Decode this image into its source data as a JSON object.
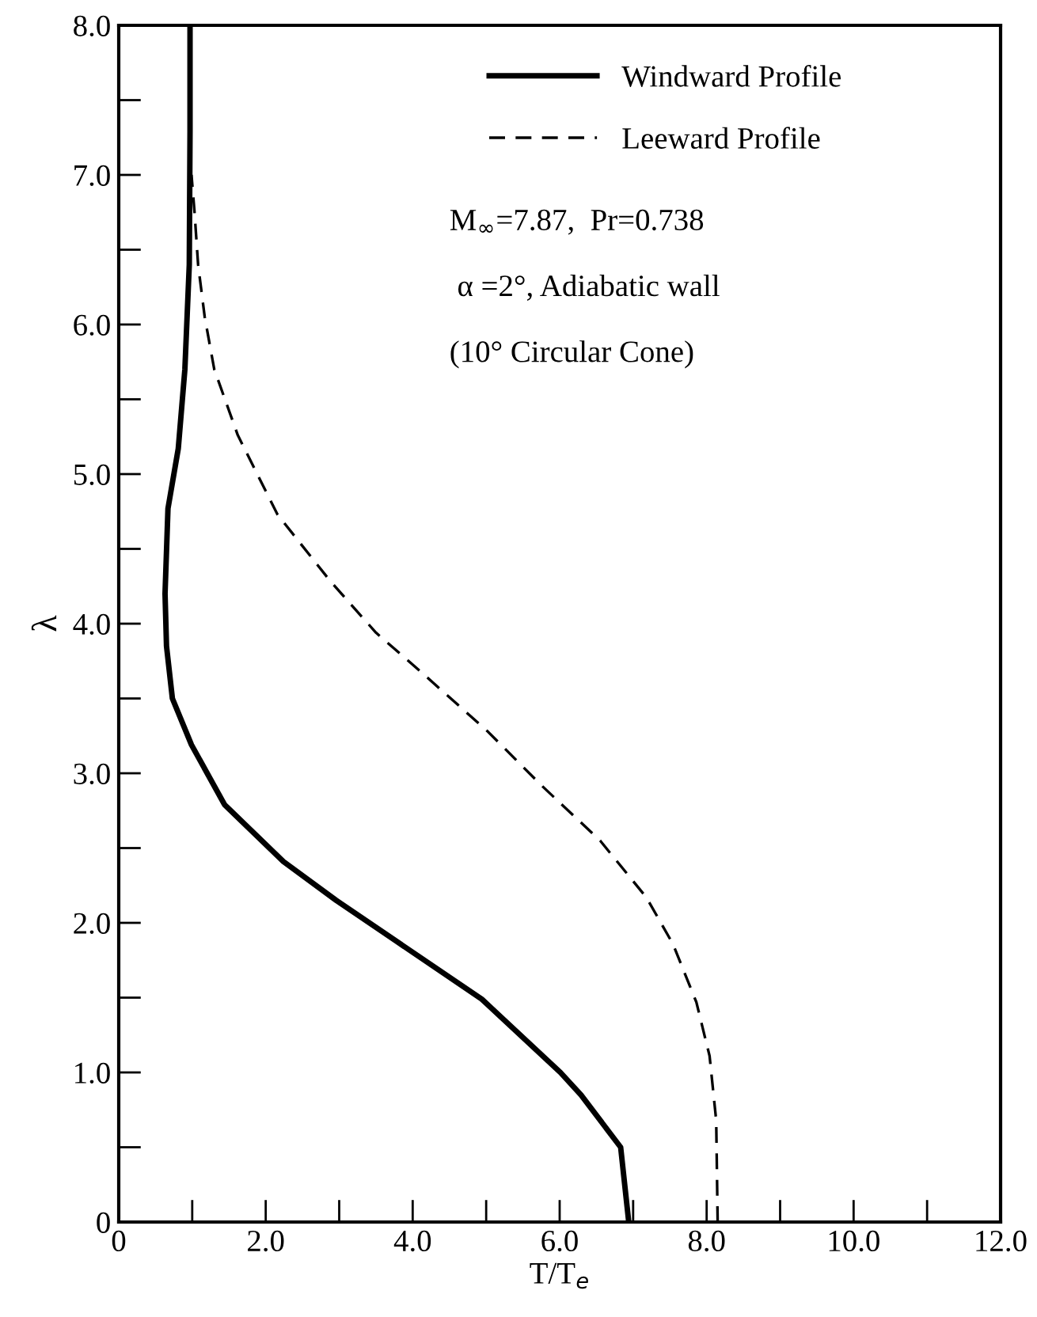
{
  "chart_data": {
    "type": "line",
    "xlabel": "T/T$_{e}$",
    "ylabel": "λ",
    "xlim": [
      0,
      12
    ],
    "ylim": [
      0,
      8
    ],
    "xticks": [
      {
        "value": 0,
        "label": "0"
      },
      {
        "value": 1,
        "label": null
      },
      {
        "value": 2,
        "label": "2.0"
      },
      {
        "value": 3,
        "label": null
      },
      {
        "value": 4,
        "label": "4.0"
      },
      {
        "value": 5,
        "label": null
      },
      {
        "value": 6,
        "label": "6.0"
      },
      {
        "value": 7,
        "label": null
      },
      {
        "value": 8,
        "label": "8.0"
      },
      {
        "value": 9,
        "label": null
      },
      {
        "value": 10,
        "label": "10.0"
      },
      {
        "value": 11,
        "label": null
      },
      {
        "value": 12,
        "label": "12.0"
      }
    ],
    "yticks": [
      {
        "value": 0,
        "label": "0"
      },
      {
        "value": 0.5,
        "label": null
      },
      {
        "value": 1,
        "label": "1.0"
      },
      {
        "value": 1.5,
        "label": null
      },
      {
        "value": 2,
        "label": "2.0"
      },
      {
        "value": 2.5,
        "label": null
      },
      {
        "value": 3,
        "label": "3.0"
      },
      {
        "value": 3.5,
        "label": null
      },
      {
        "value": 4,
        "label": "4.0"
      },
      {
        "value": 4.5,
        "label": null
      },
      {
        "value": 5,
        "label": "5.0"
      },
      {
        "value": 5.5,
        "label": null
      },
      {
        "value": 6,
        "label": "6.0"
      },
      {
        "value": 6.5,
        "label": null
      },
      {
        "value": 7,
        "label": "7.0"
      },
      {
        "value": 7.5,
        "label": null
      },
      {
        "value": 8,
        "label": "8.0"
      }
    ],
    "grid": false,
    "legend": "top",
    "marker": "none",
    "series": [
      {
        "name": "Windward Profile",
        "color": "#000000",
        "line_style": "solid",
        "x": [
          6.94,
          6.83,
          6.29,
          6.01,
          4.94,
          3.77,
          2.96,
          2.24,
          1.44,
          0.99,
          0.73,
          0.65,
          0.63,
          0.67,
          0.81,
          0.9,
          0.96,
          0.97,
          0.97
        ],
        "values": [
          0,
          0.5,
          0.85,
          1.0,
          1.49,
          1.88,
          2.15,
          2.41,
          2.79,
          3.19,
          3.5,
          3.85,
          4.2,
          4.77,
          5.17,
          5.7,
          6.4,
          7.29,
          8.0
        ]
      },
      {
        "name": "Leeward Profile",
        "color": "#000000",
        "line_style": "dashed",
        "x": [
          8.15,
          8.13,
          8.04,
          7.86,
          7.54,
          7.18,
          6.55,
          5.75,
          5.02,
          4.13,
          3.5,
          2.87,
          2.16,
          1.62,
          1.3,
          1.17,
          1.08,
          1.03,
          0.99
        ],
        "values": [
          0,
          0.68,
          1.11,
          1.47,
          1.86,
          2.17,
          2.55,
          2.92,
          3.28,
          3.67,
          3.94,
          4.29,
          4.73,
          5.26,
          5.7,
          6.05,
          6.4,
          6.76,
          7.0
        ]
      }
    ],
    "annotations": [
      "M$_{∞}$=7.87,  Pr=0.738",
      " α =2°, Adiabatic wall",
      "(10° Circular Cone)"
    ]
  }
}
